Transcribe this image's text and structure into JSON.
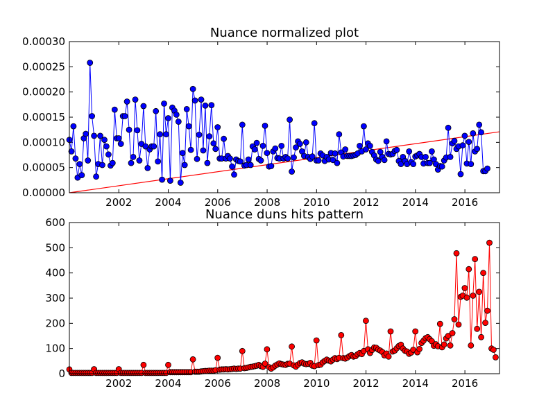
{
  "chart_data": [
    {
      "type": "line",
      "title": "Nuance normalized plot",
      "xlabel": "",
      "ylabel": "",
      "xlim": [
        2000.0,
        2017.4
      ],
      "ylim": [
        0,
        0.0003
      ],
      "x_ticks": [
        "2002",
        "2004",
        "2006",
        "2008",
        "2010",
        "2012",
        "2014",
        "2016"
      ],
      "y_ticks": [
        "0.00000",
        "0.00005",
        "0.00010",
        "0.00015",
        "0.00020",
        "0.00025",
        "0.00030"
      ],
      "grid": false,
      "series": [
        {
          "marker": "circle",
          "color": "#0000ff",
          "x_start": 2000.0,
          "x_step": 0.0833,
          "values": [
            0.000105,
            8.2e-05,
            0.000132,
            6.8e-05,
            3e-05,
            5.7e-05,
            3.5e-05,
            0.000108,
            0.000117,
            6.4e-05,
            0.000258,
            0.000152,
            0.000113,
            3.2e-05,
            5.7e-05,
            0.000113,
            5.5e-05,
            0.000105,
            9.2e-05,
            7.6e-05,
            5.4e-05,
            5.9e-05,
            0.000165,
            0.000108,
            0.000108,
            9.7e-05,
            0.000152,
            0.000152,
            0.000181,
            0.000125,
            5.9e-05,
            7.1e-05,
            0.000185,
            0.000124,
            6.4e-05,
            9.7e-05,
            0.000172,
            9.2e-05,
            4.9e-05,
            8.6e-05,
            9.2e-05,
            9.2e-05,
            0.000162,
            6.2e-05,
            0.000116,
            2.6e-05,
            0.000177,
            0.000116,
            0.000148,
            2.4e-05,
            0.000169,
            0.000163,
            0.000155,
            0.000141,
            2e-05,
            7.9e-05,
            5.5e-05,
            0.000166,
            0.000132,
            8.5e-05,
            0.000206,
            0.000183,
            6.7e-05,
            0.000115,
            0.000185,
            8.4e-05,
            0.000173,
            5.9e-05,
            0.000112,
            0.000174,
            9.8e-05,
            8.7e-05,
            0.00013,
            6.8e-05,
            6.8e-05,
            0.000107,
            6.8e-05,
            7.3e-05,
            6.8e-05,
            5.2e-05,
            3.6e-05,
            6.6e-05,
            6.3e-05,
            6.2e-05,
            0.000135,
            5.4e-05,
            5.5e-05,
            6.6e-05,
            5.5e-05,
            9.2e-05,
            8.6e-05,
            9.9e-05,
            6.7e-05,
            6.4e-05,
            9.3e-05,
            0.000133,
            7.9e-05,
            5.2e-05,
            5.3e-05,
            8.2e-05,
            8.8e-05,
            6.9e-05,
            6.8e-05,
            9.3e-05,
            6.8e-05,
            7.1e-05,
            6.8e-05,
            0.000145,
            4.2e-05,
            7e-05,
            9e-05,
            0.000102,
            9.7e-05,
            8.2e-05,
            7.3e-05,
            0.0001,
            7.1e-05,
            6.7e-05,
            7.2e-05,
            0.000138,
            6.4e-05,
            6.4e-05,
            7.8e-05,
            7.4e-05,
            6.3e-05,
            7.1e-05,
            6.6e-05,
            7.9e-05,
            6.5e-05,
            7.8e-05,
            5.9e-05,
            0.000116,
            8e-05,
            7.2e-05,
            8.6e-05,
            7.3e-05,
            7.3e-05,
            7.3e-05,
            7.4e-05,
            7.5e-05,
            7.8e-05,
            9.3e-05,
            8.2e-05,
            0.000132,
            8.6e-05,
            9.8e-05,
            9.3e-05,
            8.1e-05,
            7.4e-05,
            6.6e-05,
            6.3e-05,
            8.1e-05,
            7.1e-05,
            6.5e-05,
            0.000102,
            7.7e-05,
            7.6e-05,
            7.7e-05,
            8.3e-05,
            8.5e-05,
            6.3e-05,
            5.7e-05,
            7.1e-05,
            6.3e-05,
            5.7e-05,
            8.2e-05,
            6.1e-05,
            5.7e-05,
            7.2e-05,
            7.4e-05,
            7.7e-05,
            7.1e-05,
            5.8e-05,
            7.1e-05,
            5.9e-05,
            5.9e-05,
            8.2e-05,
            6.6e-05,
            5.7e-05,
            4.6e-05,
            5.3e-05,
            5.2e-05,
            6.4e-05,
            7e-05,
            0.000129,
            7.1e-05,
            9.8e-05,
            0.000103,
            8.7e-05,
            9.2e-05,
            3.7e-05,
            9.4e-05,
            0.000113,
            5.8e-05,
            0.000101,
            5.7e-05,
            0.000118,
            8.2e-05,
            8.7e-05,
            0.000135,
            0.00012,
            4.3e-05,
            4.3e-05,
            4.8e-05
          ]
        },
        {
          "style": "trendline",
          "color": "#ff0000",
          "x": [
            2000.0,
            2017.4
          ],
          "values": [
            0.0,
            0.000121
          ]
        }
      ]
    },
    {
      "type": "line",
      "title": "Nuance duns hits pattern",
      "xlabel": "",
      "ylabel": "",
      "xlim": [
        2000.0,
        2017.4
      ],
      "ylim": [
        0,
        600
      ],
      "x_ticks": [
        "2002",
        "2004",
        "2006",
        "2008",
        "2010",
        "2012",
        "2014",
        "2016"
      ],
      "y_ticks": [
        "0",
        "100",
        "200",
        "300",
        "400",
        "500",
        "600"
      ],
      "grid": false,
      "series": [
        {
          "marker": "circle",
          "color": "#ff0000",
          "x_start": 2000.0,
          "x_step": 0.0833,
          "values": [
            17,
            3,
            3,
            3,
            3,
            3,
            3,
            3,
            3,
            3,
            3,
            3,
            18,
            3,
            3,
            3,
            3,
            3,
            3,
            3,
            3,
            3,
            3,
            3,
            18,
            3,
            3,
            3,
            3,
            3,
            3,
            3,
            3,
            3,
            3,
            3,
            35,
            3,
            3,
            3,
            3,
            3,
            3,
            3,
            3,
            3,
            3,
            3,
            35,
            6,
            6,
            6,
            6,
            6,
            6,
            6,
            6,
            6,
            6,
            6,
            57,
            8,
            8,
            8,
            9,
            10,
            11,
            11,
            12,
            12,
            12,
            14,
            63,
            16,
            17,
            17,
            18,
            17,
            18,
            19,
            20,
            19,
            20,
            20,
            90,
            22,
            23,
            25,
            27,
            28,
            30,
            32,
            35,
            30,
            27,
            40,
            97,
            26,
            20,
            25,
            32,
            37,
            41,
            38,
            36,
            35,
            39,
            40,
            108,
            33,
            28,
            36,
            42,
            45,
            40,
            38,
            39,
            43,
            32,
            30,
            132,
            34,
            36,
            45,
            51,
            56,
            52,
            49,
            56,
            62,
            58,
            63,
            153,
            62,
            60,
            64,
            70,
            74,
            68,
            70,
            77,
            82,
            78,
            90,
            210,
            97,
            82,
            94,
            104,
            103,
            96,
            92,
            86,
            73,
            80,
            68,
            168,
            88,
            92,
            101,
            110,
            115,
            100,
            91,
            88,
            79,
            84,
            95,
            168,
            85,
            98,
            122,
            131,
            141,
            145,
            137,
            129,
            111,
            117,
            109,
            198,
            105,
            116,
            140,
            150,
            112,
            161,
            216,
            478,
            195,
            305,
            310,
            340,
            302,
            415,
            112,
            310,
            455,
            178,
            325,
            145,
            400,
            202,
            250,
            520,
            100,
            95,
            65
          ]
        }
      ]
    }
  ]
}
